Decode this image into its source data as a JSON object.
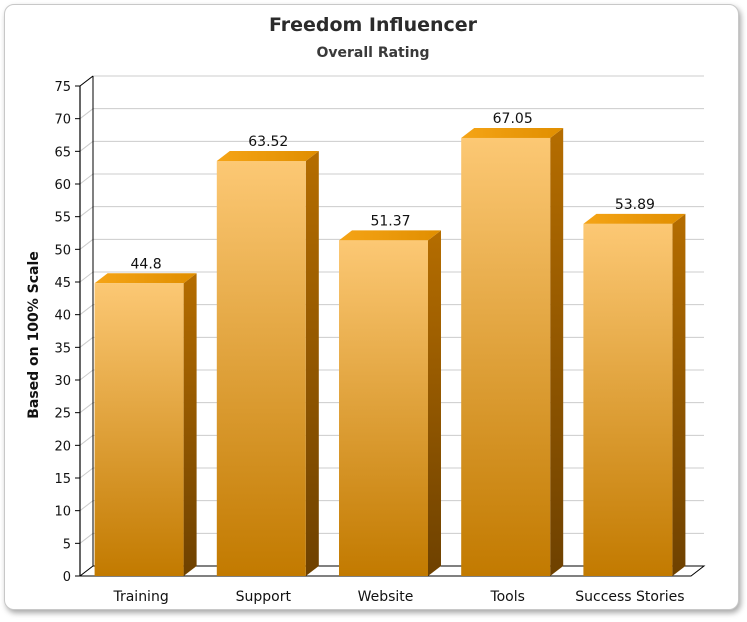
{
  "chart_data": {
    "type": "bar",
    "title": "Freedom Influencer",
    "subtitle": "Overall Rating",
    "xlabel": "",
    "ylabel": "Based on 100% Scale",
    "categories": [
      "Training",
      "Support",
      "Website",
      "Tools",
      "Success Stories"
    ],
    "values": [
      44.8,
      63.52,
      51.37,
      67.05,
      53.89
    ],
    "value_labels": [
      "44.8",
      "63.52",
      "51.37",
      "67.05",
      "53.89"
    ],
    "ylim": [
      0,
      75
    ],
    "yticks": [
      0,
      5,
      10,
      15,
      20,
      25,
      30,
      35,
      40,
      45,
      50,
      55,
      60,
      65,
      70,
      75
    ],
    "grid": true,
    "legend": "none",
    "style": "3d-column",
    "colors": {
      "bar_light": "#fcc874",
      "bar_dark": "#c27a00",
      "bar_top": "#f0a31e",
      "bar_side": "#8a5200",
      "grid": "#cccccc"
    }
  }
}
